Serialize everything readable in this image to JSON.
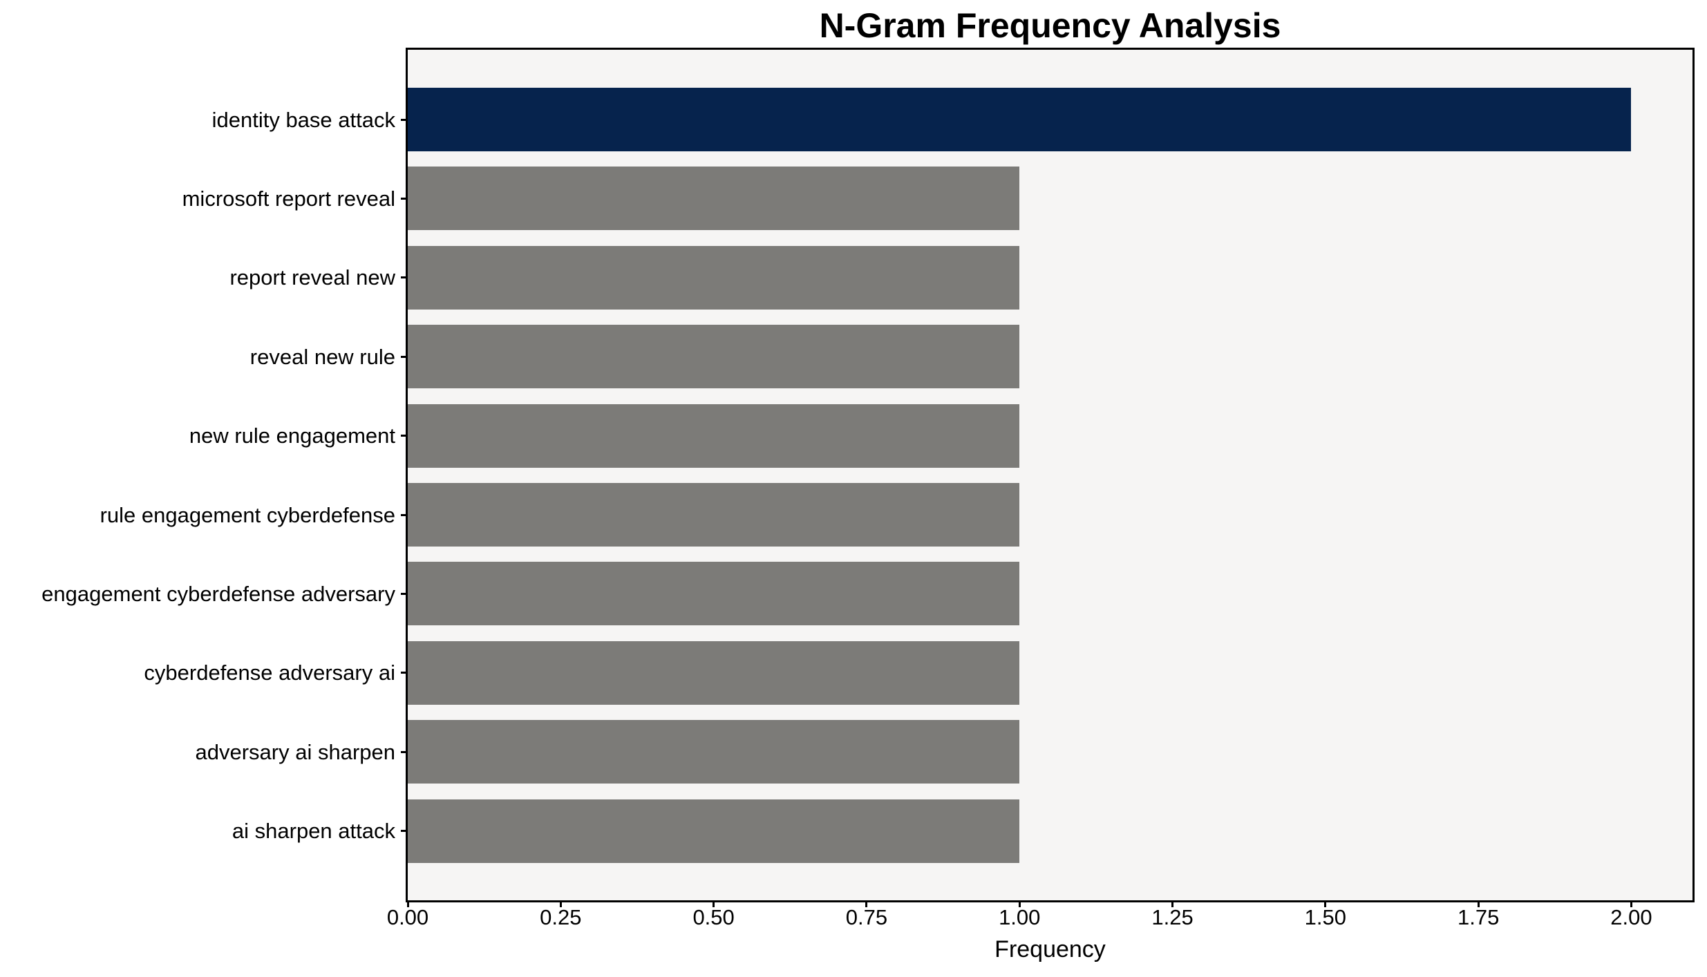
{
  "chart_data": {
    "type": "bar",
    "orientation": "horizontal",
    "title": "N-Gram Frequency Analysis",
    "xlabel": "Frequency",
    "ylabel": "",
    "categories": [
      "identity base attack",
      "microsoft report reveal",
      "report reveal new",
      "reveal new rule",
      "new rule engagement",
      "rule engagement cyberdefense",
      "engagement cyberdefense adversary",
      "cyberdefense adversary ai",
      "adversary ai sharpen",
      "ai sharpen attack"
    ],
    "values": [
      2,
      1,
      1,
      1,
      1,
      1,
      1,
      1,
      1,
      1
    ],
    "xlim": [
      0,
      2.1
    ],
    "xticks": {
      "values": [
        0,
        0.25,
        0.5,
        0.75,
        1.0,
        1.25,
        1.5,
        1.75,
        2.0
      ],
      "labels": [
        "0.00",
        "0.25",
        "0.50",
        "0.75",
        "1.00",
        "1.25",
        "1.50",
        "1.75",
        "2.00"
      ]
    },
    "grid": false,
    "legend": false,
    "bar_colors": [
      "#06234d",
      "#7c7b78",
      "#7c7b78",
      "#7c7b78",
      "#7c7b78",
      "#7c7b78",
      "#7c7b78",
      "#7c7b78",
      "#7c7b78",
      "#7c7b78"
    ],
    "colors": {
      "highlight": "#06234d",
      "default_bar": "#7c7b78",
      "plot_background": "#f6f5f4",
      "figure_background": "#ffffff",
      "spine": "#000000",
      "text": "#000000"
    }
  }
}
